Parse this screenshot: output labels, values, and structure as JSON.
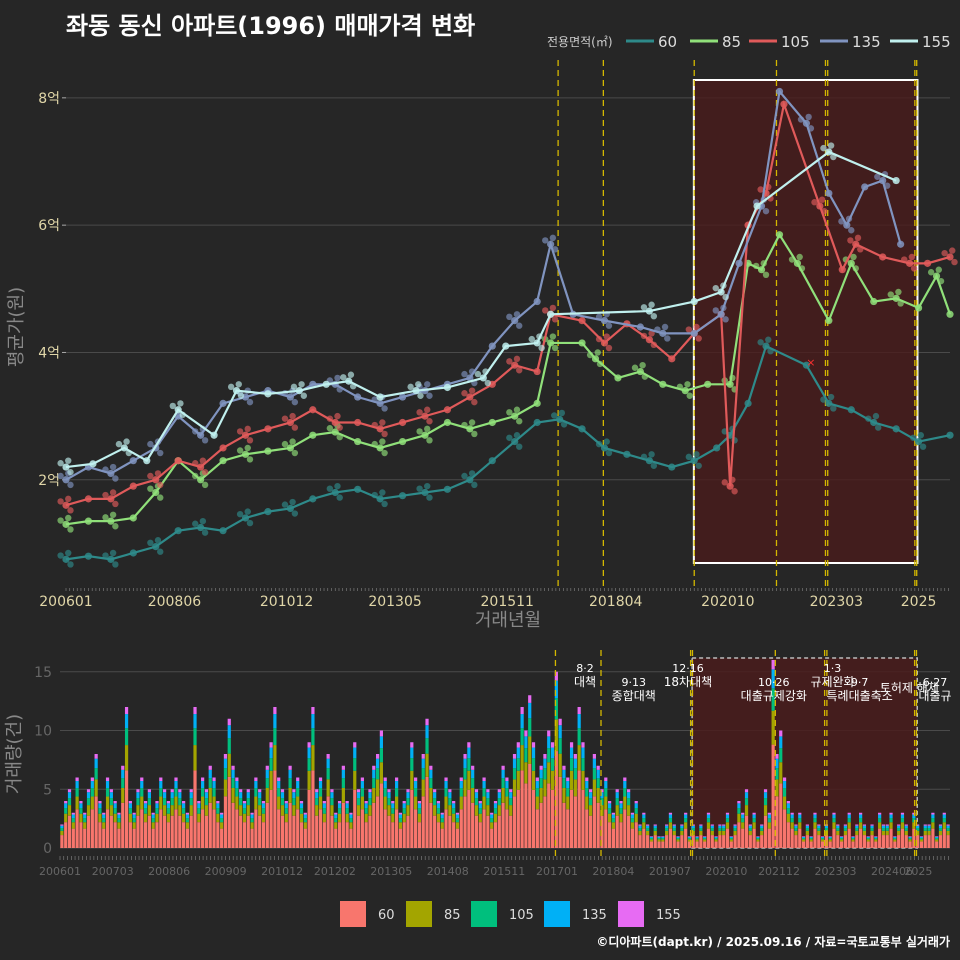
{
  "title": "좌동 동신 아파트(1996) 매매가격 변화",
  "footer": "©디아파트(dapt.kr) / 2025.09.16 / 자료=국토교통부 실거래가",
  "colors": {
    "background": "#262626",
    "grid": "#4a4a4a",
    "highlight_fill": "#4a1c1c",
    "highlight_stroke": "#ffffff",
    "event_line": "#d4b800"
  },
  "chart_data": [
    {
      "type": "line",
      "title": "좌동 동신 아파트(1996) 매매가격 변화",
      "xlabel": "거래년월",
      "ylabel": "평균가(원)",
      "legend_title": "전용면적(㎡)",
      "legend_position": "top-right",
      "x_ticks": [
        "200601",
        "200806",
        "201012",
        "201305",
        "201511",
        "201804",
        "202010",
        "202303",
        "2025"
      ],
      "y_ticks": [
        "2억",
        "4억",
        "6억",
        "8억"
      ],
      "ylim": [
        0.3,
        8.5
      ],
      "y_unit": "억",
      "grid": true,
      "highlight_region": {
        "x_start": "2020.9",
        "x_end": "2025.7"
      },
      "event_lines": [
        "2017.6",
        "2018.7",
        "2019.12",
        "2021.10",
        "2023.1",
        "2023.7",
        "2025.0",
        "2025.5"
      ],
      "series": [
        {
          "name": "60",
          "color": "#2e8a8a",
          "points": [
            [
              2006.0,
              0.75
            ],
            [
              2006.5,
              0.8
            ],
            [
              2007.0,
              0.75
            ],
            [
              2007.5,
              0.85
            ],
            [
              2008.0,
              0.95
            ],
            [
              2008.5,
              1.2
            ],
            [
              2009.0,
              1.25
            ],
            [
              2009.5,
              1.2
            ],
            [
              2010.0,
              1.4
            ],
            [
              2010.5,
              1.5
            ],
            [
              2011.0,
              1.55
            ],
            [
              2011.5,
              1.7
            ],
            [
              2012.0,
              1.8
            ],
            [
              2012.5,
              1.85
            ],
            [
              2013.0,
              1.7
            ],
            [
              2013.5,
              1.75
            ],
            [
              2014.0,
              1.8
            ],
            [
              2014.5,
              1.85
            ],
            [
              2015.0,
              2.0
            ],
            [
              2015.5,
              2.3
            ],
            [
              2016.0,
              2.6
            ],
            [
              2016.5,
              2.9
            ],
            [
              2017.0,
              2.95
            ],
            [
              2017.5,
              2.8
            ],
            [
              2018.0,
              2.5
            ],
            [
              2018.5,
              2.4
            ],
            [
              2019.0,
              2.3
            ],
            [
              2019.5,
              2.2
            ],
            [
              2020.0,
              2.3
            ],
            [
              2020.5,
              2.5
            ],
            [
              2020.8,
              2.7
            ],
            [
              2021.2,
              3.2
            ],
            [
              2021.6,
              4.1
            ],
            [
              2022.5,
              3.8
            ],
            [
              2023.0,
              3.2
            ],
            [
              2023.5,
              3.1
            ],
            [
              2024.0,
              2.9
            ],
            [
              2024.5,
              2.8
            ],
            [
              2025.0,
              2.6
            ],
            [
              2025.7,
              2.7
            ]
          ]
        },
        {
          "name": "85",
          "color": "#90e07a",
          "points": [
            [
              2006.0,
              1.3
            ],
            [
              2006.5,
              1.35
            ],
            [
              2007.0,
              1.35
            ],
            [
              2007.5,
              1.4
            ],
            [
              2008.0,
              1.8
            ],
            [
              2008.5,
              2.3
            ],
            [
              2009.0,
              2.0
            ],
            [
              2009.5,
              2.3
            ],
            [
              2010.0,
              2.4
            ],
            [
              2010.5,
              2.45
            ],
            [
              2011.0,
              2.5
            ],
            [
              2011.5,
              2.7
            ],
            [
              2012.0,
              2.75
            ],
            [
              2012.5,
              2.6
            ],
            [
              2013.0,
              2.5
            ],
            [
              2013.5,
              2.6
            ],
            [
              2014.0,
              2.7
            ],
            [
              2014.5,
              2.9
            ],
            [
              2015.0,
              2.8
            ],
            [
              2015.5,
              2.9
            ],
            [
              2016.0,
              3.0
            ],
            [
              2016.5,
              3.2
            ],
            [
              2016.8,
              4.15
            ],
            [
              2017.5,
              4.15
            ],
            [
              2017.8,
              3.9
            ],
            [
              2018.3,
              3.6
            ],
            [
              2018.8,
              3.7
            ],
            [
              2019.3,
              3.5
            ],
            [
              2019.8,
              3.4
            ],
            [
              2020.3,
              3.5
            ],
            [
              2020.8,
              3.5
            ],
            [
              2021.2,
              5.4
            ],
            [
              2021.5,
              5.3
            ],
            [
              2021.9,
              5.85
            ],
            [
              2022.3,
              5.4
            ],
            [
              2023.0,
              4.5
            ],
            [
              2023.5,
              5.4
            ],
            [
              2024.0,
              4.8
            ],
            [
              2024.5,
              4.85
            ],
            [
              2025.0,
              4.7
            ],
            [
              2025.4,
              5.2
            ],
            [
              2025.7,
              4.6
            ]
          ]
        },
        {
          "name": "105",
          "color": "#e05a5a",
          "points": [
            [
              2006.0,
              1.6
            ],
            [
              2006.5,
              1.7
            ],
            [
              2007.0,
              1.7
            ],
            [
              2007.5,
              1.9
            ],
            [
              2008.0,
              2.0
            ],
            [
              2008.5,
              2.3
            ],
            [
              2009.0,
              2.2
            ],
            [
              2009.5,
              2.5
            ],
            [
              2010.0,
              2.7
            ],
            [
              2010.5,
              2.8
            ],
            [
              2011.0,
              2.9
            ],
            [
              2011.5,
              3.1
            ],
            [
              2012.0,
              2.9
            ],
            [
              2012.5,
              2.9
            ],
            [
              2013.0,
              2.8
            ],
            [
              2013.5,
              2.9
            ],
            [
              2014.0,
              3.0
            ],
            [
              2014.5,
              3.1
            ],
            [
              2015.0,
              3.3
            ],
            [
              2015.5,
              3.5
            ],
            [
              2016.0,
              3.8
            ],
            [
              2016.5,
              3.7
            ],
            [
              2016.8,
              4.6
            ],
            [
              2017.5,
              4.5
            ],
            [
              2018.0,
              4.15
            ],
            [
              2018.5,
              4.45
            ],
            [
              2019.0,
              4.2
            ],
            [
              2019.5,
              3.9
            ],
            [
              2020.0,
              4.3
            ],
            [
              2020.6,
              4.6
            ],
            [
              2020.8,
              1.9
            ],
            [
              2021.2,
              6.0
            ],
            [
              2021.6,
              6.5
            ],
            [
              2022.0,
              7.9
            ],
            [
              2022.8,
              6.3
            ],
            [
              2023.3,
              5.3
            ],
            [
              2023.6,
              5.7
            ],
            [
              2024.2,
              5.5
            ],
            [
              2024.8,
              5.4
            ],
            [
              2025.2,
              5.4
            ],
            [
              2025.7,
              5.5
            ]
          ]
        },
        {
          "name": "135",
          "color": "#8094c0",
          "points": [
            [
              2006.0,
              2.0
            ],
            [
              2006.5,
              2.2
            ],
            [
              2007.0,
              2.1
            ],
            [
              2007.5,
              2.3
            ],
            [
              2008.0,
              2.5
            ],
            [
              2008.5,
              3.0
            ],
            [
              2009.0,
              2.7
            ],
            [
              2009.5,
              3.2
            ],
            [
              2010.0,
              3.3
            ],
            [
              2010.5,
              3.4
            ],
            [
              2011.0,
              3.3
            ],
            [
              2011.5,
              3.5
            ],
            [
              2012.0,
              3.5
            ],
            [
              2012.5,
              3.3
            ],
            [
              2013.0,
              3.2
            ],
            [
              2013.5,
              3.3
            ],
            [
              2014.0,
              3.4
            ],
            [
              2014.5,
              3.5
            ],
            [
              2015.0,
              3.6
            ],
            [
              2015.5,
              4.1
            ],
            [
              2016.0,
              4.5
            ],
            [
              2016.5,
              4.8
            ],
            [
              2016.8,
              5.7
            ],
            [
              2017.3,
              4.6
            ],
            [
              2018.0,
              4.5
            ],
            [
              2018.8,
              4.4
            ],
            [
              2019.3,
              4.3
            ],
            [
              2020.0,
              4.3
            ],
            [
              2020.6,
              4.6
            ],
            [
              2021.0,
              5.4
            ],
            [
              2021.5,
              6.3
            ],
            [
              2021.9,
              8.1
            ],
            [
              2022.5,
              7.6
            ],
            [
              2023.0,
              6.5
            ],
            [
              2023.4,
              6.0
            ],
            [
              2023.8,
              6.6
            ],
            [
              2024.2,
              6.7
            ],
            [
              2024.6,
              5.7
            ]
          ]
        },
        {
          "name": "155",
          "color": "#c0f0ee",
          "points": [
            [
              2006.0,
              2.2
            ],
            [
              2006.6,
              2.25
            ],
            [
              2007.3,
              2.5
            ],
            [
              2007.8,
              2.3
            ],
            [
              2008.5,
              3.1
            ],
            [
              2009.3,
              2.7
            ],
            [
              2009.8,
              3.4
            ],
            [
              2010.5,
              3.35
            ],
            [
              2011.2,
              3.4
            ],
            [
              2011.8,
              3.5
            ],
            [
              2012.3,
              3.55
            ],
            [
              2013.0,
              3.3
            ],
            [
              2013.8,
              3.4
            ],
            [
              2014.5,
              3.45
            ],
            [
              2015.3,
              3.6
            ],
            [
              2015.8,
              4.1
            ],
            [
              2016.5,
              4.15
            ],
            [
              2016.8,
              4.6
            ],
            [
              2019.0,
              4.65
            ],
            [
              2020.0,
              4.8
            ],
            [
              2020.6,
              4.95
            ],
            [
              2021.4,
              6.3
            ],
            [
              2023.0,
              7.15
            ],
            [
              2024.5,
              6.7
            ]
          ]
        }
      ]
    },
    {
      "type": "bar",
      "ylabel": "거래량(건)",
      "stacked": true,
      "y_ticks": [
        "0",
        "5",
        "10",
        "15"
      ],
      "ylim": [
        0,
        16
      ],
      "x_ticks": [
        "200601",
        "200703",
        "200806",
        "200909",
        "201012",
        "201202",
        "201305",
        "201408",
        "201511",
        "201701",
        "201804",
        "201907",
        "202010",
        "202112",
        "202303",
        "202406",
        "2025"
      ],
      "highlight_region": {
        "x_start": "2020.9",
        "x_end": "2025.7"
      },
      "event_lines": [
        "2017.6",
        "2018.7",
        "2019.12",
        "2020.5",
        "2021.10",
        "2023.1",
        "2023.7",
        "2025.0",
        "2025.5"
      ],
      "annotations": [
        {
          "date": "8·2",
          "text": "대책",
          "x": 2017.6
        },
        {
          "date": "9·13",
          "text": "종합대책",
          "x": 2018.7
        },
        {
          "date": "12·16",
          "text": "18차대책",
          "x": 2019.9
        },
        {
          "date": "10·26",
          "text": "대출규제강화",
          "x": 2021.8
        },
        {
          "date": "1·3",
          "text": "규제완화",
          "x": 2023.1
        },
        {
          "date": "9·7",
          "text": "특례대출축소",
          "x": 2023.7
        },
        {
          "date": "",
          "text": "토허제 해제",
          "x": 2024.8
        },
        {
          "date": "6·27",
          "text": "대출규",
          "x": 2025.4
        }
      ],
      "legend_position": "bottom",
      "series": [
        {
          "name": "60",
          "color": "#f8766d"
        },
        {
          "name": "85",
          "color": "#a3a500"
        },
        {
          "name": "105",
          "color": "#00bf7d"
        },
        {
          "name": "135",
          "color": "#00b0f6"
        },
        {
          "name": "155",
          "color": "#e76bf3"
        }
      ],
      "note": "monthly stacked volumes approximate",
      "monthly_totals": [
        2,
        4,
        5,
        3,
        6,
        4,
        3,
        5,
        6,
        8,
        4,
        3,
        6,
        5,
        4,
        3,
        7,
        12,
        4,
        3,
        5,
        6,
        4,
        5,
        3,
        4,
        6,
        5,
        4,
        5,
        6,
        5,
        4,
        3,
        5,
        12,
        4,
        6,
        5,
        7,
        6,
        4,
        3,
        8,
        11,
        7,
        6,
        5,
        4,
        5,
        3,
        6,
        5,
        4,
        7,
        9,
        12,
        6,
        5,
        4,
        7,
        5,
        6,
        4,
        3,
        9,
        12,
        5,
        6,
        4,
        8,
        5,
        3,
        4,
        7,
        4,
        3,
        9,
        5,
        6,
        4,
        5,
        7,
        8,
        10,
        6,
        5,
        4,
        6,
        3,
        4,
        5,
        9,
        6,
        4,
        8,
        11,
        7,
        5,
        4,
        3,
        6,
        5,
        4,
        3,
        6,
        8,
        9,
        7,
        5,
        4,
        6,
        5,
        3,
        4,
        5,
        7,
        6,
        5,
        8,
        9,
        12,
        10,
        13,
        9,
        6,
        7,
        8,
        10,
        9,
        15,
        11,
        7,
        6,
        9,
        8,
        12,
        9,
        6,
        5,
        8,
        7,
        5,
        6,
        4,
        3,
        5,
        4,
        6,
        5,
        3,
        4,
        2,
        3,
        2,
        1,
        2,
        1,
        1,
        2,
        3,
        2,
        1,
        2,
        3,
        1,
        2,
        1,
        2,
        1,
        3,
        2,
        1,
        2,
        2,
        3,
        1,
        2,
        4,
        3,
        5,
        2,
        3,
        1,
        2,
        5,
        3,
        16,
        8,
        10,
        6,
        4,
        3,
        2,
        3,
        1,
        2,
        1,
        3,
        2,
        1,
        2,
        1,
        3,
        2,
        1,
        2,
        3,
        1,
        2,
        3,
        2,
        1,
        2,
        1,
        3,
        2,
        2,
        3,
        1,
        2,
        3,
        2,
        1,
        3,
        2,
        1,
        2,
        2,
        3,
        1,
        2,
        3,
        2
      ]
    }
  ]
}
